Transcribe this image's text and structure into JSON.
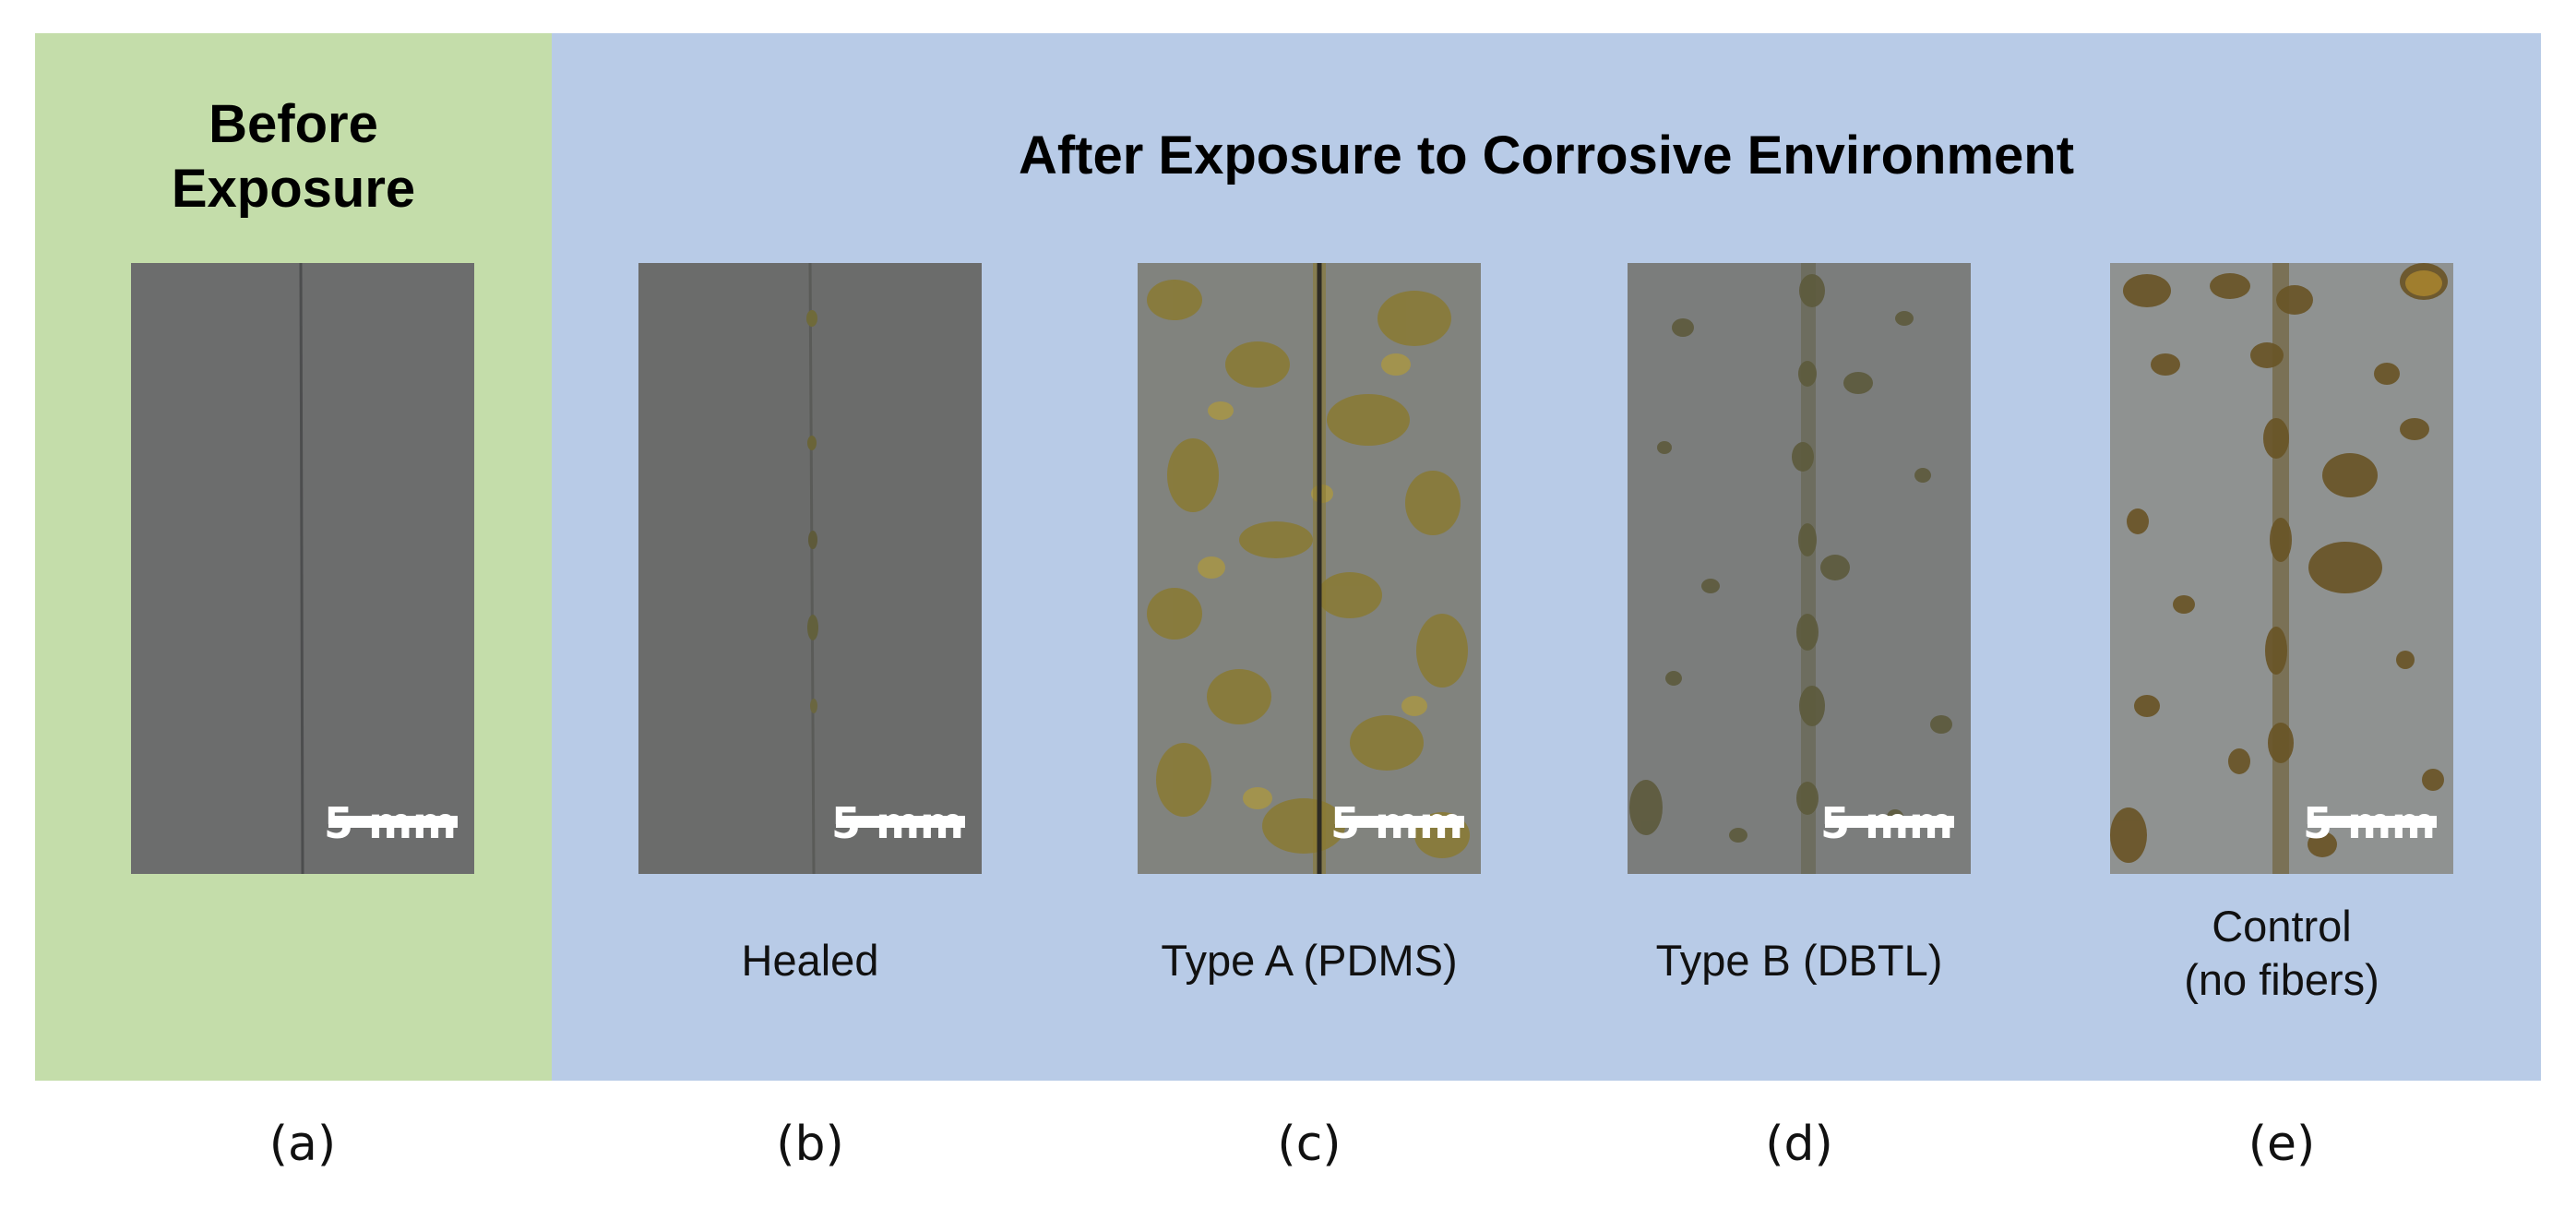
{
  "before_heading": [
    "Before",
    "Exposure"
  ],
  "after_heading": "After Exposure to Corrosive Environment",
  "scale_label": "5 mm",
  "panels": [
    {
      "letter": "(a)",
      "caption": ""
    },
    {
      "letter": "(b)",
      "caption": "Healed"
    },
    {
      "letter": "(c)",
      "caption": "Type A (PDMS)"
    },
    {
      "letter": "(d)",
      "caption": "Type B (DBTL)"
    },
    {
      "letter": "(e)",
      "caption": [
        "Control",
        "(no fibers)"
      ]
    }
  ],
  "colors": {
    "before_background": "#c4ddaa",
    "after_background": "#b8cbe7",
    "steel_gray": "#6a6b6b",
    "rust": "#7f6a2e"
  }
}
